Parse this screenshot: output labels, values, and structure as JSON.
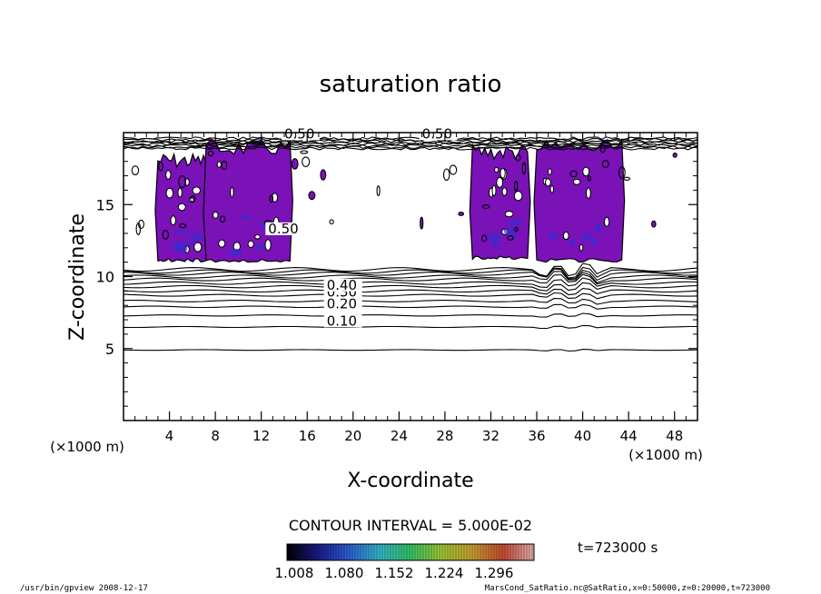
{
  "chart_data": {
    "type": "heatmap",
    "title": "saturation ratio",
    "xlabel": "X-coordinate",
    "ylabel": "Z-coordinate",
    "x_unit": "(×1000 m)",
    "x_unit_right": "(×1000 m)",
    "xlim": [
      0,
      50
    ],
    "ylim": [
      0,
      20
    ],
    "x_ticks": [
      "4",
      "8",
      "12",
      "16",
      "20",
      "24",
      "28",
      "32",
      "36",
      "40",
      "44",
      "48"
    ],
    "y_ticks": [
      "5",
      "10",
      "15"
    ],
    "contour_interval_text": "CONTOUR INTERVAL = 5.000E-02",
    "contour_labels": [
      {
        "text": "0.10",
        "value": 0.1,
        "x": 17.7,
        "z": 6.6
      },
      {
        "text": "0.20",
        "value": 0.2,
        "x": 17.7,
        "z": 7.8
      },
      {
        "text": "0.30",
        "value": 0.3,
        "x": 17.7,
        "z": 8.6
      },
      {
        "text": "0.40",
        "value": 0.4,
        "x": 17.7,
        "z": 9.1
      },
      {
        "text": "0.50",
        "value": 0.5,
        "x": 12.6,
        "z": 13.0
      },
      {
        "text": "0.50",
        "value": 0.5,
        "x": 26.0,
        "z": 19.6
      },
      {
        "text": "0.50",
        "value": 0.5,
        "x": 14.0,
        "z": 19.6
      }
    ],
    "contour_levels_lower": [
      {
        "value": 0.05,
        "z": 4.9
      },
      {
        "value": 0.1,
        "z": 6.5
      },
      {
        "value": 0.15,
        "z": 7.3
      },
      {
        "value": 0.2,
        "z": 7.9
      },
      {
        "value": 0.25,
        "z": 8.3
      },
      {
        "value": 0.3,
        "z": 8.7
      },
      {
        "value": 0.35,
        "z": 9.0
      },
      {
        "value": 0.4,
        "z": 9.3
      },
      {
        "value": 0.45,
        "z": 9.55
      },
      {
        "value": 0.5,
        "z": 9.8
      },
      {
        "value": 0.55,
        "z": 10.0
      },
      {
        "value": 0.6,
        "z": 10.2
      },
      {
        "value": 0.65,
        "z": 10.35
      },
      {
        "value": 0.7,
        "z": 10.5
      }
    ],
    "supersaturated_regions": [
      {
        "x": [
          3.0,
          7.2
        ],
        "z": [
          11.0,
          18.6
        ],
        "value": 1.01
      },
      {
        "x": [
          7.2,
          14.5
        ],
        "z": [
          11.0,
          19.5
        ],
        "value": 1.02
      },
      {
        "x": [
          30.4,
          35.2
        ],
        "z": [
          11.2,
          19.2
        ],
        "value": 1.01
      },
      {
        "x": [
          36.0,
          43.4
        ],
        "z": [
          11.0,
          19.5
        ],
        "value": 1.02
      }
    ],
    "colorbar": {
      "min": 1.008,
      "max": 1.296,
      "tick_labels": [
        "1.008",
        "1.080",
        "1.152",
        "1.224",
        "1.296"
      ],
      "colors": [
        "#000000",
        "#1a1a8c",
        "#2c5fd6",
        "#33b8c8",
        "#33c466",
        "#9fc733",
        "#c7a133",
        "#c74a33",
        "#e0b0b0"
      ]
    },
    "time_label": "t=723000 s",
    "fill_color": "#7a12b8",
    "dense_fill_color": "#3a2ad0"
  },
  "footer": {
    "left": "/usr/bin/gpview   2008-12-17",
    "right": "MarsCond_SatRatio.nc@SatRatio,x=0:50000,z=0:20000,t=723000"
  }
}
